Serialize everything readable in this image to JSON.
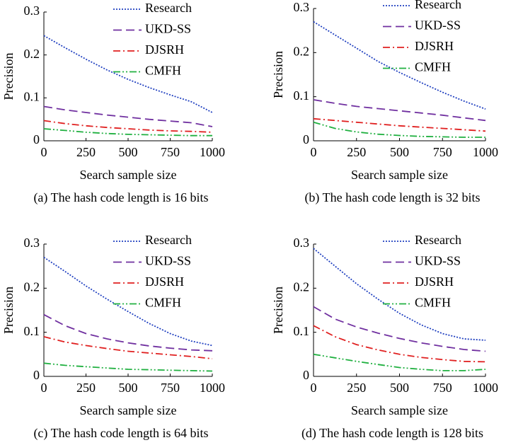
{
  "chart_data": [
    {
      "type": "line",
      "caption": "(a) The hash code length is 16 bits",
      "xlabel": "Search sample size",
      "ylabel": "Precision",
      "x": [
        0,
        125,
        250,
        375,
        500,
        625,
        750,
        875,
        1000
      ],
      "xlim": [
        0,
        1000
      ],
      "xticks": [
        0,
        250,
        500,
        750,
        1000
      ],
      "ylim": [
        0,
        0.3
      ],
      "yticks": [
        0,
        0.1,
        0.2,
        0.3
      ],
      "series": [
        {
          "name": "Research",
          "color": "#2040c0",
          "dash": "dotted",
          "values": [
            0.245,
            0.217,
            0.19,
            0.165,
            0.143,
            0.124,
            0.107,
            0.091,
            0.066
          ]
        },
        {
          "name": "UKD-SS",
          "color": "#7030a0",
          "dash": "dashed",
          "values": [
            0.08,
            0.072,
            0.066,
            0.06,
            0.055,
            0.05,
            0.046,
            0.042,
            0.033
          ]
        },
        {
          "name": "DJSRH",
          "color": "#e02020",
          "dash": "dashdot",
          "values": [
            0.047,
            0.04,
            0.035,
            0.031,
            0.028,
            0.025,
            0.023,
            0.022,
            0.02
          ]
        },
        {
          "name": "CMFH",
          "color": "#20b040",
          "dash": "dashdotdot",
          "values": [
            0.028,
            0.024,
            0.02,
            0.017,
            0.015,
            0.014,
            0.013,
            0.012,
            0.012
          ]
        }
      ]
    },
    {
      "type": "line",
      "caption": "(b) The hash code length is 32 bits",
      "xlabel": "Search sample size",
      "ylabel": "Precision",
      "x": [
        0,
        125,
        250,
        375,
        500,
        625,
        750,
        875,
        1000
      ],
      "xlim": [
        0,
        1000
      ],
      "xticks": [
        0,
        250,
        500,
        750,
        1000
      ],
      "ylim": [
        0,
        0.3
      ],
      "yticks": [
        0,
        0.1,
        0.2,
        0.3
      ],
      "series": [
        {
          "name": "Research",
          "color": "#2040c0",
          "dash": "dotted",
          "values": [
            0.27,
            0.24,
            0.21,
            0.18,
            0.155,
            0.132,
            0.11,
            0.09,
            0.072
          ]
        },
        {
          "name": "UKD-SS",
          "color": "#7030a0",
          "dash": "dashed",
          "values": [
            0.093,
            0.085,
            0.078,
            0.073,
            0.068,
            0.063,
            0.058,
            0.052,
            0.046
          ]
        },
        {
          "name": "DJSRH",
          "color": "#e02020",
          "dash": "dashdot",
          "values": [
            0.05,
            0.046,
            0.042,
            0.038,
            0.034,
            0.031,
            0.028,
            0.025,
            0.022
          ]
        },
        {
          "name": "CMFH",
          "color": "#20b040",
          "dash": "dashdotdot",
          "values": [
            0.042,
            0.028,
            0.02,
            0.015,
            0.012,
            0.01,
            0.009,
            0.008,
            0.008
          ]
        }
      ]
    },
    {
      "type": "line",
      "caption": "(c) The hash code length is 64 bits",
      "xlabel": "Search sample size",
      "ylabel": "Precision",
      "x": [
        0,
        125,
        250,
        375,
        500,
        625,
        750,
        875,
        1000
      ],
      "xlim": [
        0,
        1000
      ],
      "xticks": [
        0,
        250,
        500,
        750,
        1000
      ],
      "ylim": [
        0,
        0.3
      ],
      "yticks": [
        0,
        0.1,
        0.2,
        0.3
      ],
      "series": [
        {
          "name": "Research",
          "color": "#2040c0",
          "dash": "dotted",
          "values": [
            0.27,
            0.238,
            0.205,
            0.175,
            0.147,
            0.12,
            0.097,
            0.08,
            0.07
          ]
        },
        {
          "name": "UKD-SS",
          "color": "#7030a0",
          "dash": "dashed",
          "values": [
            0.14,
            0.115,
            0.097,
            0.085,
            0.076,
            0.069,
            0.064,
            0.06,
            0.058
          ]
        },
        {
          "name": "DJSRH",
          "color": "#e02020",
          "dash": "dashdot",
          "values": [
            0.09,
            0.078,
            0.07,
            0.063,
            0.057,
            0.053,
            0.049,
            0.045,
            0.04
          ]
        },
        {
          "name": "CMFH",
          "color": "#20b040",
          "dash": "dashdotdot",
          "values": [
            0.03,
            0.025,
            0.022,
            0.019,
            0.016,
            0.015,
            0.014,
            0.013,
            0.012
          ]
        }
      ]
    },
    {
      "type": "line",
      "caption": "(d) The hash code length is 128 bits",
      "xlabel": "Search sample size",
      "ylabel": "Precision",
      "x": [
        0,
        125,
        250,
        375,
        500,
        625,
        750,
        875,
        1000
      ],
      "xlim": [
        0,
        1000
      ],
      "xticks": [
        0,
        250,
        500,
        750,
        1000
      ],
      "ylim": [
        0,
        0.3
      ],
      "yticks": [
        0,
        0.1,
        0.2,
        0.3
      ],
      "series": [
        {
          "name": "Research",
          "color": "#2040c0",
          "dash": "dotted",
          "values": [
            0.29,
            0.25,
            0.21,
            0.175,
            0.143,
            0.117,
            0.097,
            0.085,
            0.082
          ]
        },
        {
          "name": "UKD-SS",
          "color": "#7030a0",
          "dash": "dashed",
          "values": [
            0.158,
            0.13,
            0.112,
            0.098,
            0.086,
            0.076,
            0.068,
            0.061,
            0.057
          ]
        },
        {
          "name": "DJSRH",
          "color": "#e02020",
          "dash": "dashdot",
          "values": [
            0.115,
            0.09,
            0.072,
            0.06,
            0.05,
            0.043,
            0.038,
            0.034,
            0.033
          ]
        },
        {
          "name": "CMFH",
          "color": "#20b040",
          "dash": "dashdotdot",
          "values": [
            0.05,
            0.042,
            0.034,
            0.027,
            0.02,
            0.016,
            0.013,
            0.013,
            0.016
          ]
        }
      ]
    }
  ]
}
